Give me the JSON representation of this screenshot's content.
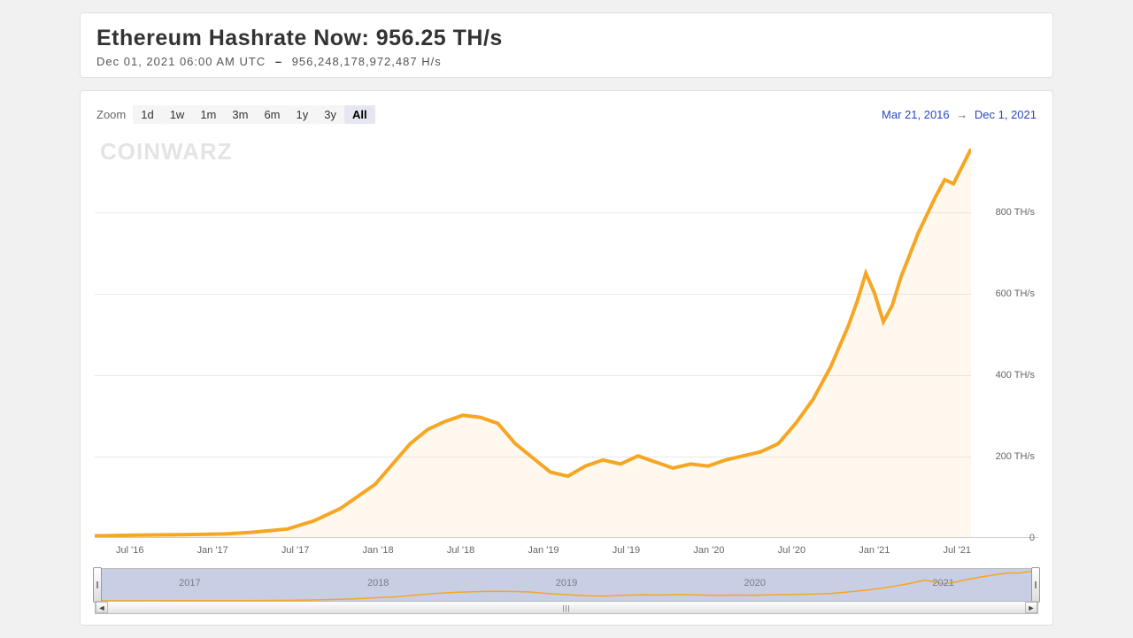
{
  "header": {
    "title": "Ethereum Hashrate Now: 956.25 TH/s",
    "timestamp": "Dec 01, 2021 06:00 AM UTC",
    "separator": "–",
    "raw_value": "956,248,178,972,487 H/s"
  },
  "toolbar": {
    "zoom_label": "Zoom",
    "buttons": [
      "1d",
      "1w",
      "1m",
      "3m",
      "6m",
      "1y",
      "3y",
      "All"
    ],
    "active_index": 7,
    "date_from": "Mar 21, 2016",
    "date_to": "Dec 1, 2021",
    "arrow": "→"
  },
  "watermark": "COINWARZ",
  "chart": {
    "type": "area",
    "line_color": "#f5a623",
    "fill_color": "rgba(245,166,35,0.08)",
    "line_width": 2,
    "background_color": "#ffffff",
    "grid_color": "#e9e9e9",
    "axis_font_size": 11,
    "axis_color": "#666666",
    "y_unit": "TH/s",
    "ylim": [
      0,
      1000
    ],
    "y_ticks": [
      0,
      200,
      400,
      600,
      800
    ],
    "y_tick_labels": [
      "0",
      "200 TH/s",
      "400 TH/s",
      "600 TH/s",
      "800 TH/s"
    ],
    "x_labels": [
      "Jul '16",
      "Jan '17",
      "Jul '17",
      "Jan '18",
      "Jul '18",
      "Jan '19",
      "Jul '19",
      "Jan '20",
      "Jul '20",
      "Jan '21",
      "Jul '21"
    ],
    "series": [
      {
        "t": 0,
        "v": 3
      },
      {
        "t": 5,
        "v": 5
      },
      {
        "t": 10,
        "v": 6
      },
      {
        "t": 15,
        "v": 8
      },
      {
        "t": 18,
        "v": 12
      },
      {
        "t": 22,
        "v": 20
      },
      {
        "t": 25,
        "v": 40
      },
      {
        "t": 28,
        "v": 70
      },
      {
        "t": 30,
        "v": 100
      },
      {
        "t": 32,
        "v": 130
      },
      {
        "t": 34,
        "v": 180
      },
      {
        "t": 36,
        "v": 230
      },
      {
        "t": 38,
        "v": 265
      },
      {
        "t": 40,
        "v": 285
      },
      {
        "t": 42,
        "v": 300
      },
      {
        "t": 44,
        "v": 295
      },
      {
        "t": 46,
        "v": 280
      },
      {
        "t": 48,
        "v": 230
      },
      {
        "t": 50,
        "v": 195
      },
      {
        "t": 52,
        "v": 160
      },
      {
        "t": 54,
        "v": 150
      },
      {
        "t": 56,
        "v": 175
      },
      {
        "t": 58,
        "v": 190
      },
      {
        "t": 60,
        "v": 180
      },
      {
        "t": 62,
        "v": 200
      },
      {
        "t": 64,
        "v": 185
      },
      {
        "t": 66,
        "v": 170
      },
      {
        "t": 68,
        "v": 180
      },
      {
        "t": 70,
        "v": 175
      },
      {
        "t": 72,
        "v": 190
      },
      {
        "t": 74,
        "v": 200
      },
      {
        "t": 76,
        "v": 210
      },
      {
        "t": 78,
        "v": 230
      },
      {
        "t": 80,
        "v": 280
      },
      {
        "t": 82,
        "v": 340
      },
      {
        "t": 84,
        "v": 420
      },
      {
        "t": 86,
        "v": 520
      },
      {
        "t": 87,
        "v": 580
      },
      {
        "t": 88,
        "v": 650
      },
      {
        "t": 89,
        "v": 600
      },
      {
        "t": 90,
        "v": 530
      },
      {
        "t": 91,
        "v": 570
      },
      {
        "t": 92,
        "v": 640
      },
      {
        "t": 94,
        "v": 750
      },
      {
        "t": 96,
        "v": 840
      },
      {
        "t": 97,
        "v": 880
      },
      {
        "t": 98,
        "v": 870
      },
      {
        "t": 100,
        "v": 956
      }
    ]
  },
  "navigator": {
    "years": [
      "2017",
      "2018",
      "2019",
      "2020",
      "2021"
    ],
    "bg_color": "#c8cee4",
    "line_color": "#f5a623"
  }
}
